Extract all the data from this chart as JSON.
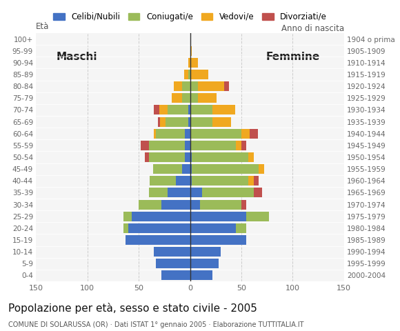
{
  "age_groups": [
    "0-4",
    "5-9",
    "10-14",
    "15-19",
    "20-24",
    "25-29",
    "30-34",
    "35-39",
    "40-44",
    "45-49",
    "50-54",
    "55-59",
    "60-64",
    "65-69",
    "70-74",
    "75-79",
    "80-84",
    "85-89",
    "90-94",
    "95-99",
    "100+"
  ],
  "birth_years": [
    "2000-2004",
    "1995-1999",
    "1990-1994",
    "1985-1989",
    "1980-1984",
    "1975-1979",
    "1970-1974",
    "1965-1969",
    "1960-1964",
    "1955-1959",
    "1950-1954",
    "1945-1949",
    "1940-1944",
    "1935-1939",
    "1930-1934",
    "1925-1929",
    "1920-1924",
    "1915-1919",
    "1910-1914",
    "1905-1909",
    "1904 o prima"
  ],
  "male": {
    "celibe": [
      28,
      33,
      35,
      63,
      60,
      57,
      28,
      22,
      14,
      8,
      5,
      5,
      5,
      2,
      2,
      0,
      0,
      0,
      0,
      0,
      0
    ],
    "coniugato": [
      0,
      0,
      0,
      0,
      5,
      8,
      22,
      18,
      25,
      28,
      35,
      35,
      28,
      22,
      20,
      8,
      8,
      2,
      0,
      0,
      0
    ],
    "vedovo": [
      0,
      0,
      0,
      0,
      0,
      0,
      0,
      0,
      0,
      0,
      0,
      0,
      2,
      5,
      8,
      10,
      8,
      4,
      2,
      0,
      0
    ],
    "divorziato": [
      0,
      0,
      0,
      0,
      0,
      0,
      0,
      0,
      0,
      0,
      4,
      8,
      0,
      2,
      5,
      0,
      0,
      0,
      0,
      0,
      0
    ]
  },
  "female": {
    "nubile": [
      22,
      28,
      30,
      55,
      45,
      55,
      10,
      12,
      2,
      2,
      2,
      0,
      0,
      0,
      0,
      0,
      0,
      0,
      0,
      0,
      0
    ],
    "coniugata": [
      0,
      0,
      0,
      0,
      10,
      22,
      40,
      50,
      55,
      65,
      55,
      45,
      50,
      22,
      22,
      8,
      8,
      0,
      0,
      0,
      0
    ],
    "vedova": [
      0,
      0,
      0,
      0,
      0,
      0,
      0,
      0,
      5,
      5,
      5,
      5,
      8,
      18,
      22,
      18,
      25,
      18,
      8,
      2,
      0
    ],
    "divorziata": [
      0,
      0,
      0,
      0,
      0,
      0,
      5,
      8,
      5,
      0,
      0,
      5,
      8,
      0,
      0,
      0,
      5,
      0,
      0,
      0,
      0
    ]
  },
  "colors": {
    "celibe": "#4472C4",
    "coniugato": "#9BBB59",
    "vedovo": "#F0A820",
    "divorziato": "#C0504D"
  },
  "xlim": 150,
  "title": "Popolazione per età, sesso e stato civile - 2005",
  "subtitle": "COMUNE DI SOLARUSSA (OR) · Dati ISTAT 1° gennaio 2005 · Elaborazione TUTTITALIA.IT",
  "ylabel_left": "Età",
  "ylabel_right": "Anno di nascita",
  "label_maschi": "Maschi",
  "label_femmine": "Femmine",
  "legend_labels": [
    "Celibi/Nubili",
    "Coniugati/e",
    "Vedovi/e",
    "Divorziati/e"
  ],
  "bg_color": "#f5f5f5"
}
